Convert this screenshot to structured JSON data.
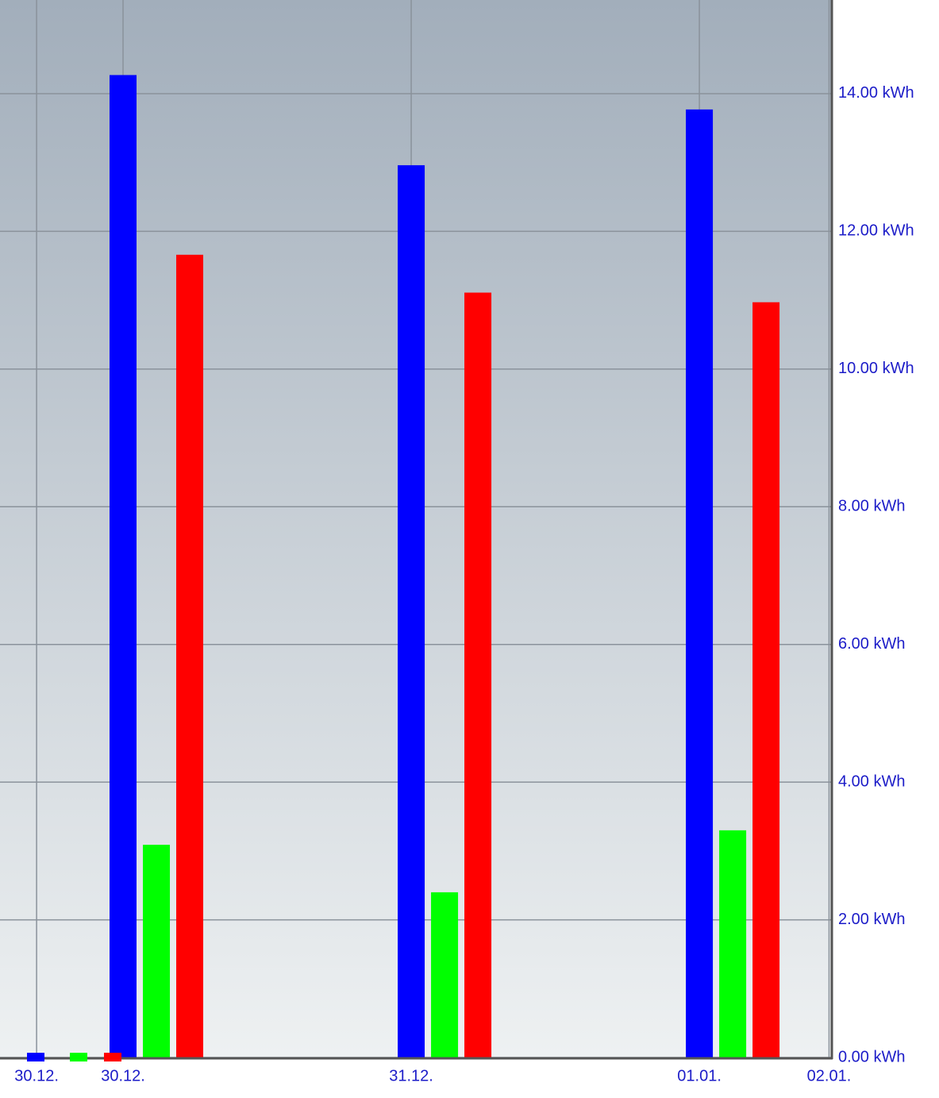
{
  "chart_data": {
    "type": "bar",
    "x": [
      0,
      1,
      2
    ],
    "xlim": [
      -0.427,
      2.457
    ],
    "xticks": [
      {
        "value": -0.3,
        "label": "30.12."
      },
      {
        "value": 0,
        "label": "30.12."
      },
      {
        "value": 1,
        "label": "31.12."
      },
      {
        "value": 2,
        "label": "01.01."
      },
      {
        "value": 2.45,
        "label": "02.01."
      }
    ],
    "ylim": [
      0,
      15.36
    ],
    "yticks": [
      {
        "value": 0,
        "label": "0.00 kWh"
      },
      {
        "value": 2,
        "label": "2.00 kWh"
      },
      {
        "value": 4,
        "label": "4.00 kWh"
      },
      {
        "value": 6,
        "label": "6.00 kWh"
      },
      {
        "value": 8,
        "label": "8.00 kWh"
      },
      {
        "value": 10,
        "label": "10.00 kWh"
      },
      {
        "value": 12,
        "label": "12.00 kWh"
      },
      {
        "value": 14,
        "label": "14.00 kWh"
      }
    ],
    "grid": true,
    "series": [
      {
        "color": "#0000ff",
        "values": [
          14.27,
          12.96,
          13.77
        ]
      },
      {
        "color": "#00ff00",
        "values": [
          3.09,
          2.4,
          3.3
        ]
      },
      {
        "color": "#ff0000",
        "values": [
          11.66,
          11.11,
          10.97
        ]
      }
    ]
  }
}
